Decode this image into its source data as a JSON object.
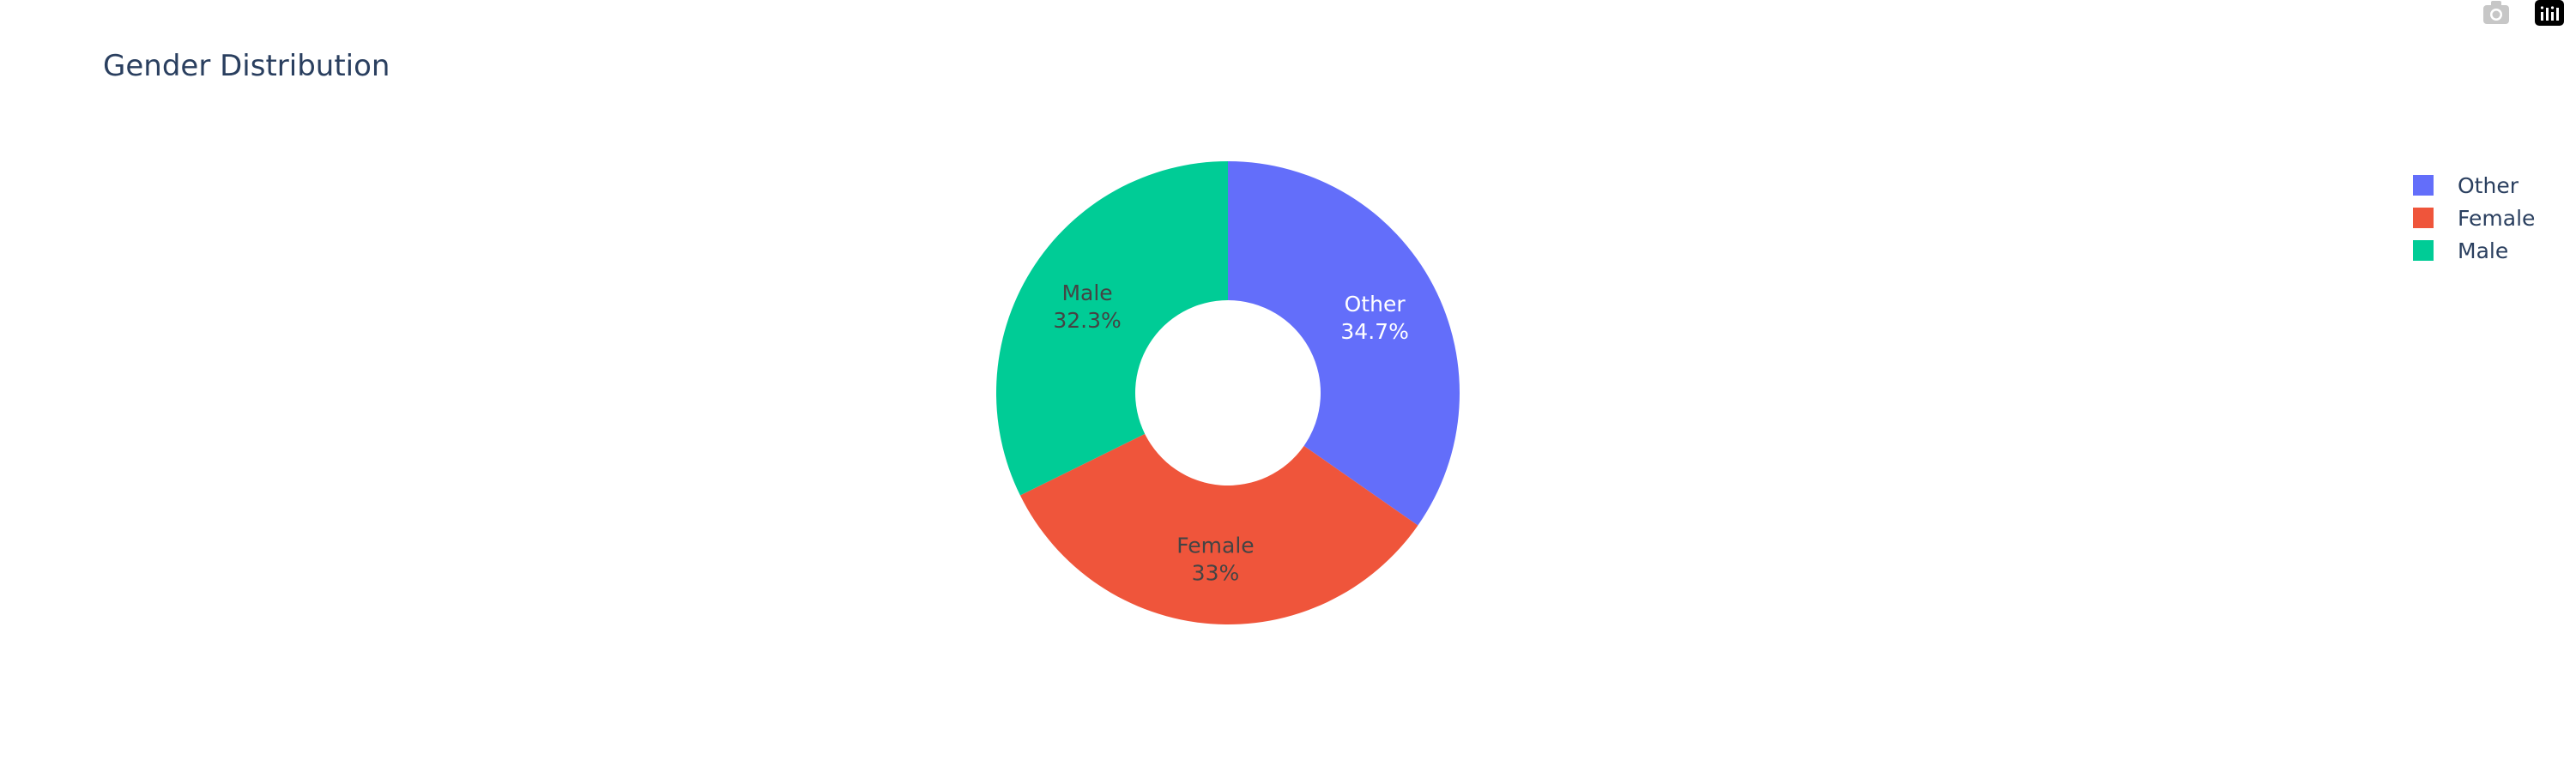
{
  "chart_data": {
    "type": "pie",
    "hole": true,
    "title": "Gender Distribution",
    "slices": [
      {
        "label": "Other",
        "value": 34.7,
        "text_pct": "34.7%",
        "color": "#636efa",
        "text_color": "#ffffff"
      },
      {
        "label": "Female",
        "value": 33.0,
        "text_pct": "33%",
        "color": "#ef553b",
        "text_color": "#444444"
      },
      {
        "label": "Male",
        "value": 32.3,
        "text_pct": "32.3%",
        "color": "#00cc96",
        "text_color": "#444444"
      }
    ],
    "legend": {
      "placement": "top-right",
      "entries": [
        "Other",
        "Female",
        "Male"
      ]
    }
  },
  "modebar": {
    "icons": [
      "camera-icon",
      "plotly-logo-icon"
    ]
  }
}
